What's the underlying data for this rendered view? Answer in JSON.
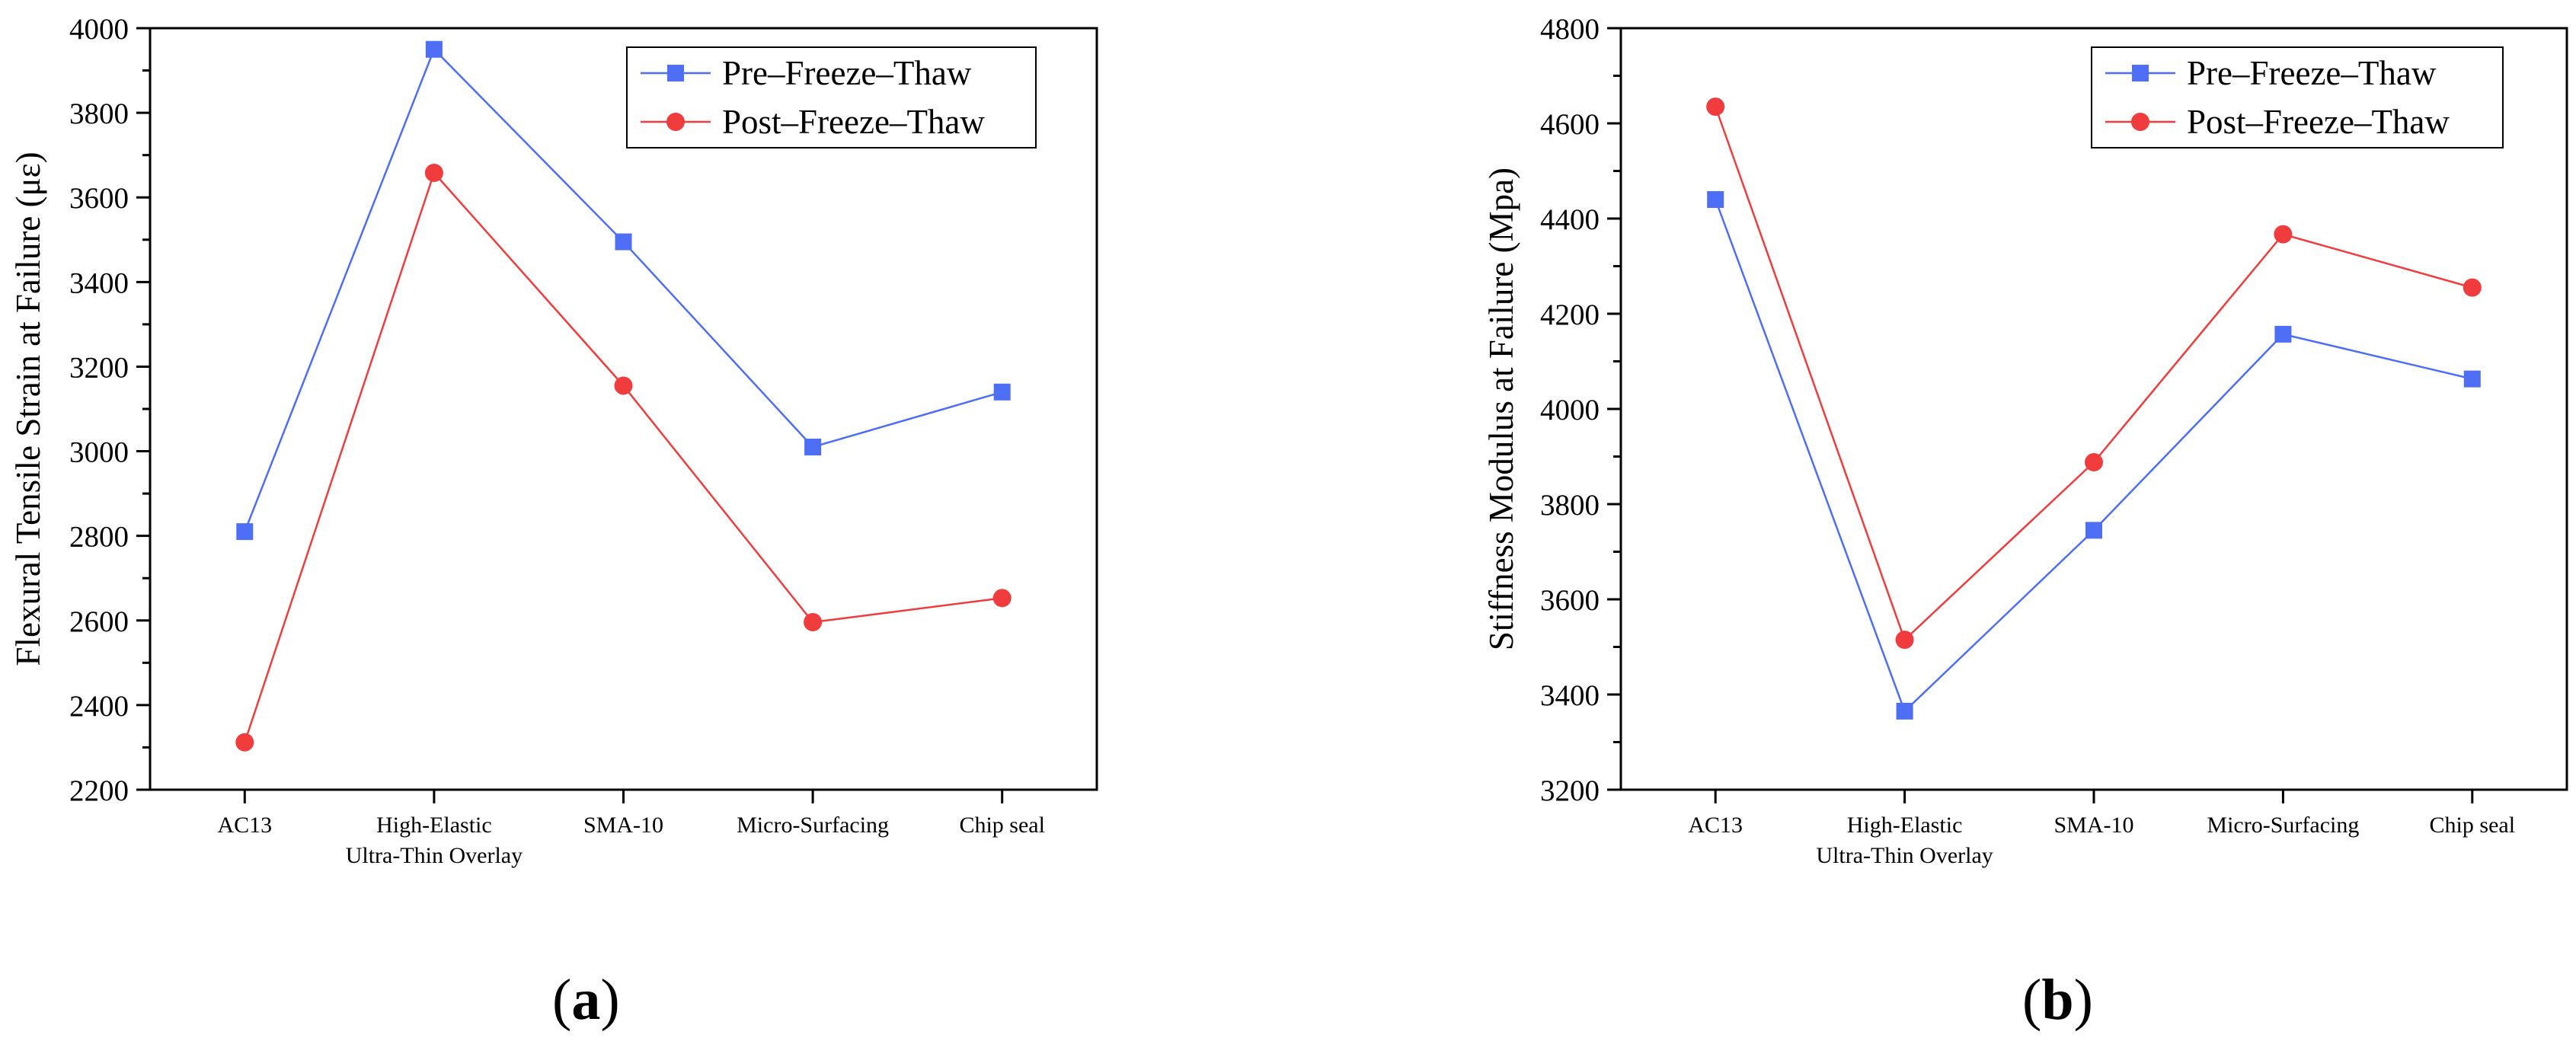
{
  "chart_data": [
    {
      "type": "line",
      "panel": "a",
      "title": "",
      "xlabel": "",
      "ylabel": "Flexural Tensile Strain at Failure (με)",
      "ylim": [
        2200,
        4000
      ],
      "yticks": [
        2200,
        2400,
        2600,
        2800,
        3000,
        3200,
        3400,
        3600,
        3800,
        4000
      ],
      "categories": [
        [
          "AC13"
        ],
        [
          "High-Elastic",
          "Ultra-Thin Overlay"
        ],
        [
          "SMA-10"
        ],
        [
          "Micro-Surfacing"
        ],
        [
          "Chip seal"
        ]
      ],
      "legend_position": "top-right",
      "series": [
        {
          "name": "Pre–Freeze–Thaw",
          "color": "#4d6ef5",
          "marker": "square",
          "values": [
            2810,
            3950,
            3495,
            3010,
            3140
          ]
        },
        {
          "name": "Post–Freeze–Thaw",
          "color": "#f03c3c",
          "marker": "circle",
          "values": [
            2312,
            3658,
            3155,
            2596,
            2653
          ]
        }
      ]
    },
    {
      "type": "line",
      "panel": "b",
      "title": "",
      "xlabel": "",
      "ylabel": "Stiffness Modulus at Failure (Mpa)",
      "ylim": [
        3200,
        4800
      ],
      "yticks": [
        3200,
        3400,
        3600,
        3800,
        4000,
        4200,
        4400,
        4600,
        4800
      ],
      "categories": [
        [
          "AC13"
        ],
        [
          "High-Elastic",
          "Ultra-Thin Overlay"
        ],
        [
          "SMA-10"
        ],
        [
          "Micro-Surfacing"
        ],
        [
          "Chip seal"
        ]
      ],
      "legend_position": "top-right",
      "series": [
        {
          "name": "Pre–Freeze–Thaw",
          "color": "#4d6ef5",
          "marker": "square",
          "values": [
            4440,
            3365,
            3745,
            4157,
            4063
          ]
        },
        {
          "name": "Post–Freeze–Thaw",
          "color": "#f03c3c",
          "marker": "circle",
          "values": [
            4635,
            3515,
            3888,
            4367,
            4255
          ]
        }
      ]
    }
  ],
  "panel_labels": {
    "a": "a",
    "b": "b"
  }
}
